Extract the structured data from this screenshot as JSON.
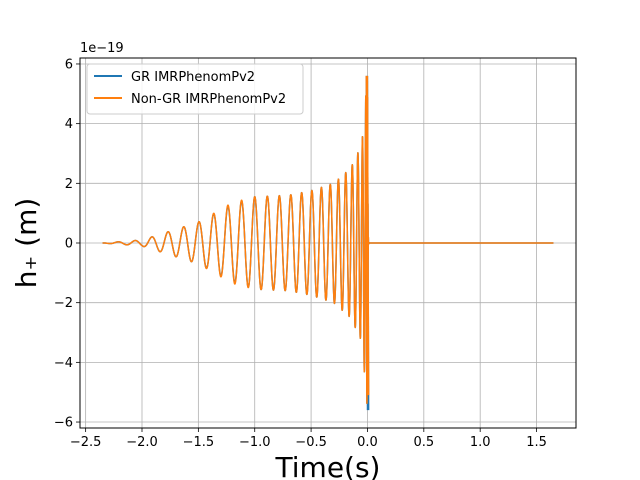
{
  "chart_data": {
    "type": "line",
    "title": "",
    "xlabel": "Time(s)",
    "ylabel": "h₊ (m)",
    "offset_text": "1e−19",
    "xlim": [
      -2.55,
      1.85
    ],
    "ylim": [
      -6.2,
      6.2
    ],
    "xticks": [
      -2.5,
      -2.0,
      -1.5,
      -1.0,
      -0.5,
      0.0,
      0.5,
      1.0,
      1.5
    ],
    "xtick_labels": [
      "−2.5",
      "−2.0",
      "−1.5",
      "−1.0",
      "−0.5",
      "0.0",
      "0.5",
      "1.0",
      "1.5"
    ],
    "yticks": [
      -6,
      -4,
      -2,
      0,
      2,
      4,
      6
    ],
    "ytick_labels": [
      "−6",
      "−4",
      "−2",
      "0",
      "2",
      "4",
      "6"
    ],
    "grid": true,
    "legend_position": "top-left",
    "series": [
      {
        "name": "GR IMRPhenomPv2",
        "color": "#1f77b4",
        "x_range": [
          -2.35,
          1.65
        ],
        "merger_time": 0.0,
        "envelope_x": [
          -2.35,
          -2.0,
          -1.5,
          -1.2,
          -1.0,
          -0.7,
          -0.5,
          -0.3,
          -0.15,
          -0.05,
          0.0,
          0.01,
          0.05,
          1.65
        ],
        "envelope_y": [
          0.0,
          0.1,
          0.7,
          1.3,
          1.55,
          1.6,
          1.75,
          2.0,
          2.5,
          3.3,
          5.6,
          0.3,
          0.0,
          0.0
        ],
        "peak_max": 5.6,
        "peak_min": -5.6
      },
      {
        "name": "Non-GR IMRPhenomPv2",
        "color": "#ff7f0e",
        "x_range": [
          -2.35,
          1.65
        ],
        "merger_time": 0.0,
        "envelope_x": [
          -2.35,
          -2.0,
          -1.5,
          -1.2,
          -1.0,
          -0.7,
          -0.5,
          -0.3,
          -0.15,
          -0.05,
          0.0,
          0.01,
          0.05,
          1.65
        ],
        "envelope_y": [
          0.0,
          0.1,
          0.7,
          1.35,
          1.55,
          1.6,
          1.75,
          2.0,
          2.5,
          3.3,
          5.6,
          0.3,
          0.0,
          0.0
        ],
        "peak_max": 5.6,
        "peak_min": -5.1
      }
    ]
  }
}
